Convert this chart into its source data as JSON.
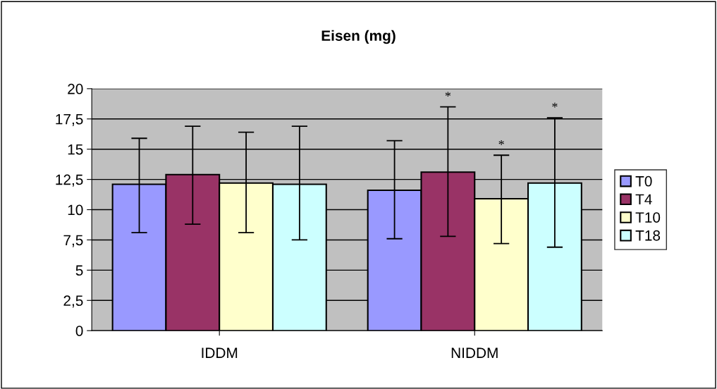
{
  "chart_data": {
    "type": "bar",
    "title": "Eisen (mg)",
    "categories": [
      "IDDM",
      "NIDDM"
    ],
    "series": [
      {
        "name": "T0",
        "color": "#9999ff",
        "values": [
          12.1,
          11.6
        ],
        "errors": [
          [
            8.1,
            15.9
          ],
          [
            7.6,
            15.7
          ]
        ]
      },
      {
        "name": "T4",
        "color": "#993366",
        "values": [
          12.9,
          13.1
        ],
        "errors": [
          [
            8.8,
            16.9
          ],
          [
            7.8,
            18.5
          ]
        ]
      },
      {
        "name": "T10",
        "color": "#ffffcc",
        "values": [
          12.2,
          10.9
        ],
        "errors": [
          [
            8.1,
            16.4
          ],
          [
            7.2,
            14.5
          ]
        ]
      },
      {
        "name": "T18",
        "color": "#ccffff",
        "values": [
          12.1,
          12.2
        ],
        "errors": [
          [
            7.5,
            16.9
          ],
          [
            6.9,
            17.6
          ]
        ]
      }
    ],
    "ylim": [
      0,
      20
    ],
    "yticks": [
      0,
      {
        "value": 2.5,
        "label": "2,5"
      },
      5,
      {
        "value": 7.5,
        "label": "7,5"
      },
      10,
      {
        "value": 12.5,
        "label": "12,5"
      },
      15,
      {
        "value": 17.5,
        "label": "17,5"
      },
      20
    ],
    "annotations": [
      "*",
      "*",
      "*"
    ],
    "grid": "y",
    "legend": "right"
  }
}
